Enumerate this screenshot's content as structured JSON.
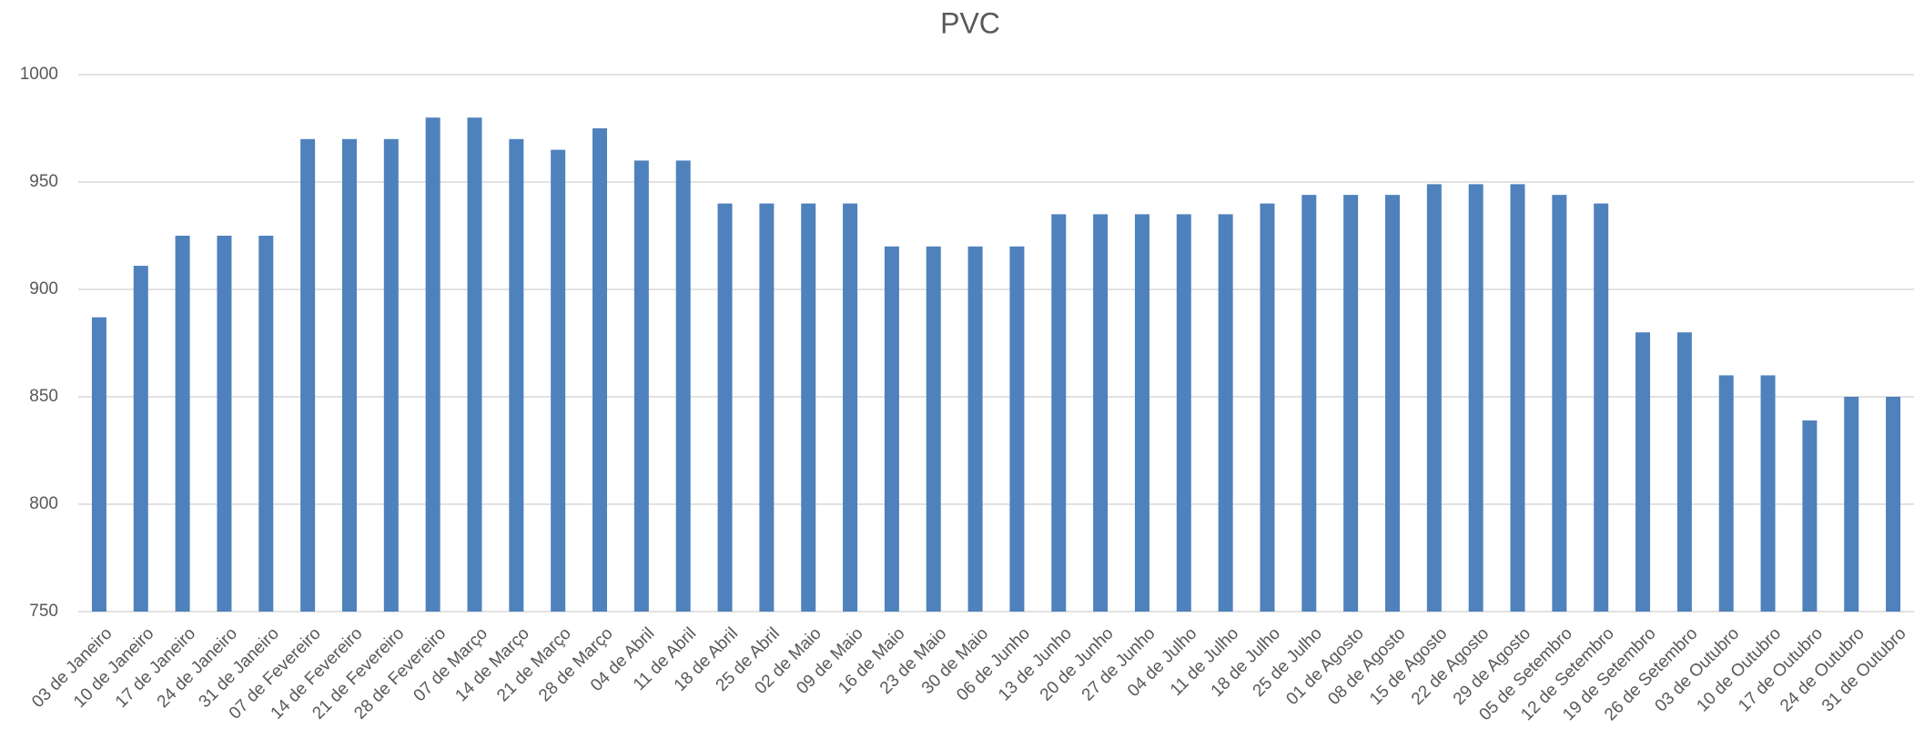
{
  "chart_data": {
    "type": "bar",
    "title": "PVC",
    "categories": [
      "03 de Janeiro",
      "10 de Janeiro",
      "17 de Janeiro",
      "24 de Janeiro",
      "31 de Janeiro",
      "07 de Fevereiro",
      "14 de Fevereiro",
      "21 de Fevereiro",
      "28 de Fevereiro",
      "07 de Março",
      "14 de Março",
      "21 de Março",
      "28 de Março",
      "04 de Abril",
      "11 de Abril",
      "18 de Abril",
      "25 de Abril",
      "02 de Maio",
      "09 de Maio",
      "16 de Maio",
      "23 de Maio",
      "30 de Maio",
      "06 de Junho",
      "13 de Junho",
      "20 de Junho",
      "27 de Junho",
      "04 de Julho",
      "11 de Julho",
      "18 de Julho",
      "25 de Julho",
      "01 de Agosto",
      "08 de Agosto",
      "15 de Agosto",
      "22 de Agosto",
      "29 de Agosto",
      "05 de Setembro",
      "12 de Setembro",
      "19 de Setembro",
      "26 de Setembro",
      "03 de Outubro",
      "10 de Outubro",
      "17 de Outubro",
      "24 de Outubro",
      "31 de Outubro"
    ],
    "values": [
      887,
      911,
      925,
      925,
      925,
      970,
      970,
      970,
      980,
      980,
      970,
      965,
      975,
      960,
      960,
      940,
      940,
      940,
      940,
      920,
      920,
      920,
      920,
      935,
      935,
      935,
      935,
      935,
      940,
      944,
      944,
      944,
      949,
      949,
      949,
      944,
      940,
      880,
      880,
      860,
      860,
      839,
      850,
      850
    ],
    "color": "#4f81bd",
    "ylim": [
      750,
      1000
    ],
    "yticks": [
      750,
      800,
      850,
      900,
      950,
      1000
    ],
    "grid": true
  }
}
